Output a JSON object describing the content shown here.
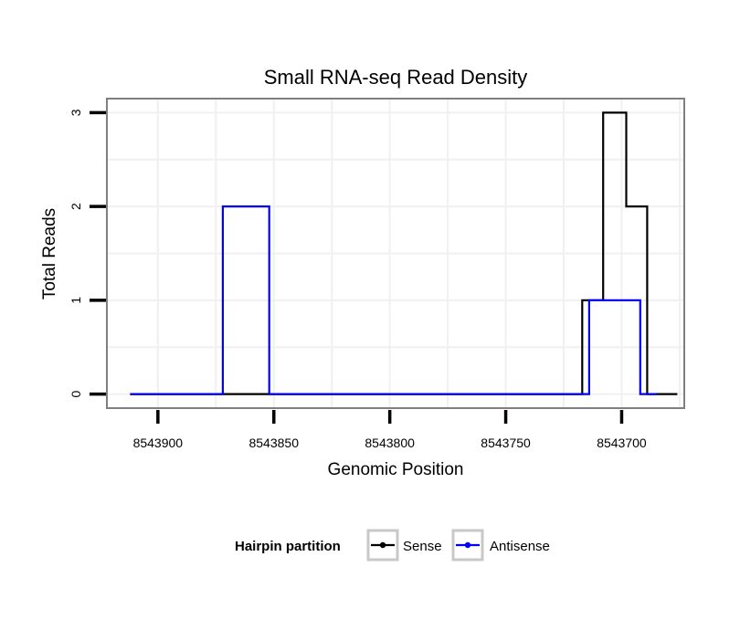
{
  "chart_data": {
    "type": "line",
    "title": "Small RNA-seq Read Density",
    "xlabel": "Genomic Position",
    "ylabel": "Total Reads",
    "x_reversed": true,
    "xlim": [
      8543922,
      8543673
    ],
    "ylim": [
      -0.15,
      3.15
    ],
    "x_ticks": [
      8543900,
      8543850,
      8543800,
      8543750,
      8543700
    ],
    "x_tick_labels": [
      "8543900",
      "8543850",
      "8543800",
      "8543750",
      "8543700"
    ],
    "y_ticks": [
      0,
      1,
      2,
      3
    ],
    "y_tick_labels": [
      "0",
      "1",
      "2",
      "3"
    ],
    "legend": {
      "title": "Hairpin partition",
      "position": "bottom"
    },
    "series": [
      {
        "name": "Sense",
        "color": "#000000",
        "points": [
          [
            8543912,
            0
          ],
          [
            8543717,
            0
          ],
          [
            8543717,
            1
          ],
          [
            8543708,
            1
          ],
          [
            8543708,
            3
          ],
          [
            8543698,
            3
          ],
          [
            8543698,
            2
          ],
          [
            8543689,
            2
          ],
          [
            8543689,
            0
          ],
          [
            8543676,
            0
          ]
        ]
      },
      {
        "name": "Antisense",
        "color": "#0000ff",
        "points": [
          [
            8543912,
            0
          ],
          [
            8543872,
            0
          ],
          [
            8543872,
            2
          ],
          [
            8543852,
            2
          ],
          [
            8543852,
            0
          ],
          [
            8543714,
            0
          ],
          [
            8543714,
            1
          ],
          [
            8543692,
            1
          ],
          [
            8543692,
            0
          ],
          [
            8543685,
            0
          ]
        ]
      }
    ]
  }
}
